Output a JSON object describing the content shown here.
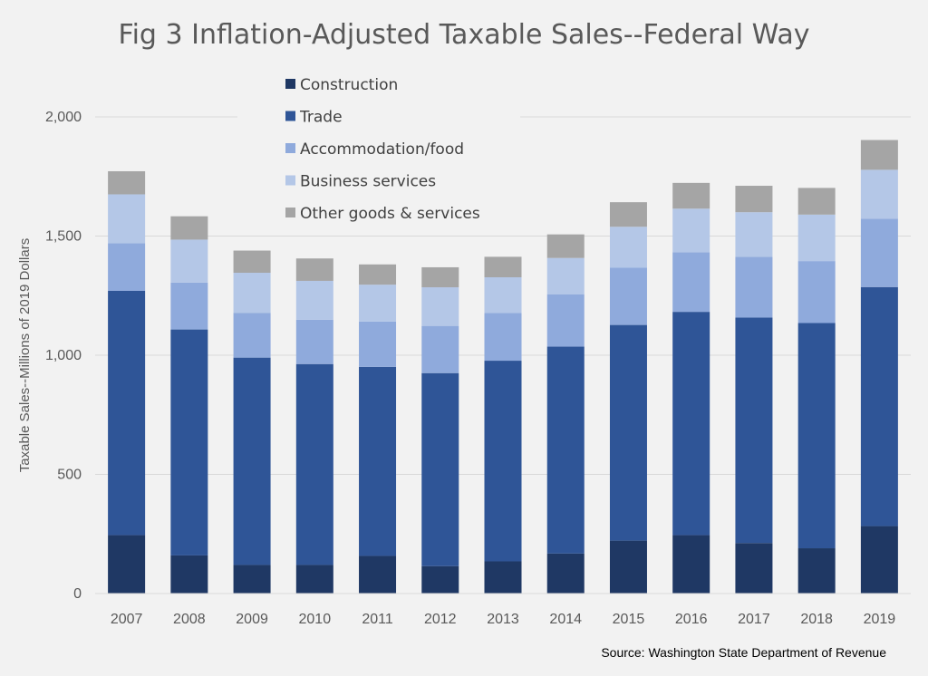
{
  "chart_data": {
    "type": "bar",
    "stacked": true,
    "title": "Fig 3 Inflation-Adjusted Taxable Sales--Federal Way",
    "xlabel": "",
    "ylabel": "Taxable Sales--Millions of 2019 Dollars",
    "ylim": [
      0,
      2000
    ],
    "yticks": [
      0,
      500,
      1000,
      1500,
      2000
    ],
    "ytick_labels": [
      "0",
      "500",
      "1,000",
      "1,500",
      "2,000"
    ],
    "grid": true,
    "legend_position": "top-center",
    "categories": [
      "2007",
      "2008",
      "2009",
      "2010",
      "2011",
      "2012",
      "2013",
      "2014",
      "2015",
      "2016",
      "2017",
      "2018",
      "2019"
    ],
    "series": [
      {
        "name": "Construction",
        "color": "#1f3864",
        "values": [
          245,
          160,
          120,
          120,
          158,
          115,
          135,
          168,
          222,
          245,
          212,
          190,
          283
        ]
      },
      {
        "name": "Trade",
        "color": "#2f5597",
        "values": [
          1025,
          948,
          870,
          843,
          793,
          810,
          842,
          868,
          905,
          937,
          946,
          945,
          1003
        ]
      },
      {
        "name": "Accommodation/food",
        "color": "#8faadc",
        "values": [
          200,
          197,
          188,
          186,
          190,
          198,
          200,
          220,
          240,
          250,
          255,
          260,
          287
        ]
      },
      {
        "name": "Business services",
        "color": "#b4c7e7",
        "values": [
          205,
          180,
          168,
          163,
          155,
          162,
          150,
          152,
          172,
          183,
          187,
          195,
          205
        ]
      },
      {
        "name": "Other goods & services",
        "color": "#a5a5a5",
        "values": [
          97,
          98,
          93,
          94,
          85,
          84,
          86,
          99,
          103,
          108,
          111,
          112,
          125
        ]
      }
    ],
    "source": "Source: Washington State Department of Revenue"
  }
}
